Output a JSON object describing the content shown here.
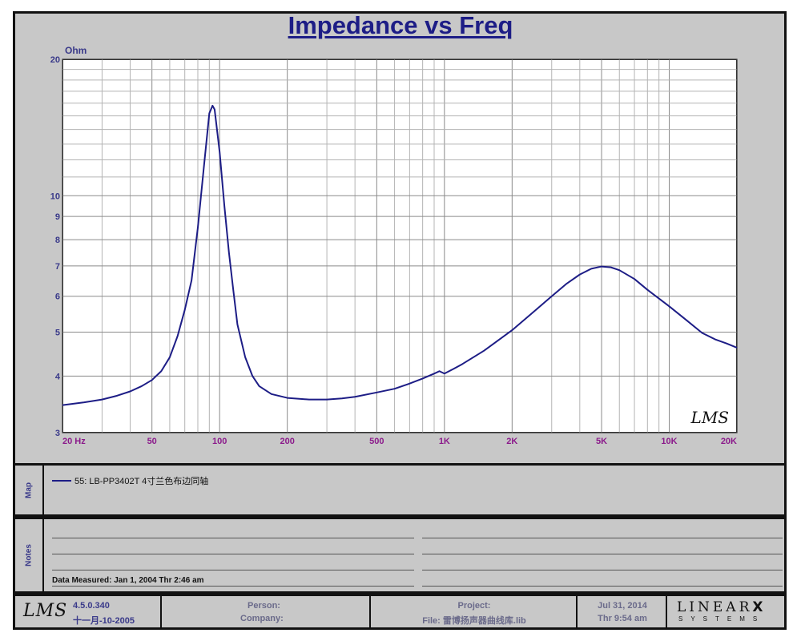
{
  "chart_data": {
    "type": "line",
    "title": "Impedance vs Freq",
    "y_unit_label": "Ohm",
    "x_scale": "log",
    "y_scale": "log",
    "xlim": [
      20,
      20000
    ],
    "ylim": [
      3,
      20
    ],
    "x_tick_labels": [
      {
        "value": 20,
        "label": "20  Hz"
      },
      {
        "value": 50,
        "label": "50"
      },
      {
        "value": 100,
        "label": "100"
      },
      {
        "value": 200,
        "label": "200"
      },
      {
        "value": 500,
        "label": "500"
      },
      {
        "value": 1000,
        "label": "1K"
      },
      {
        "value": 2000,
        "label": "2K"
      },
      {
        "value": 5000,
        "label": "5K"
      },
      {
        "value": 10000,
        "label": "10K"
      },
      {
        "value": 20000,
        "label": "20K"
      }
    ],
    "y_tick_labels": [
      {
        "value": 3,
        "label": "3"
      },
      {
        "value": 4,
        "label": "4"
      },
      {
        "value": 5,
        "label": "5"
      },
      {
        "value": 6,
        "label": "6"
      },
      {
        "value": 7,
        "label": "7"
      },
      {
        "value": 8,
        "label": "8"
      },
      {
        "value": 9,
        "label": "9"
      },
      {
        "value": 10,
        "label": "10"
      },
      {
        "value": 20,
        "label": "20"
      }
    ],
    "grid": true,
    "series": [
      {
        "name": "55: LB-PP3402T 4寸兰色布边同轴",
        "color": "#1d1d86",
        "x": [
          20,
          25,
          30,
          35,
          40,
          45,
          50,
          55,
          60,
          65,
          70,
          75,
          80,
          85,
          90,
          93,
          95,
          100,
          105,
          110,
          115,
          120,
          130,
          140,
          150,
          170,
          200,
          250,
          300,
          350,
          400,
          500,
          600,
          700,
          800,
          900,
          950,
          1000,
          1100,
          1200,
          1500,
          2000,
          2500,
          3000,
          3500,
          4000,
          4500,
          5000,
          5500,
          6000,
          7000,
          8000,
          10000,
          12000,
          14000,
          16000,
          18000,
          20000
        ],
        "y": [
          3.45,
          3.5,
          3.55,
          3.62,
          3.7,
          3.8,
          3.92,
          4.1,
          4.4,
          4.9,
          5.6,
          6.5,
          8.5,
          11.5,
          15.2,
          15.8,
          15.5,
          12.5,
          9.5,
          7.5,
          6.2,
          5.2,
          4.4,
          4.0,
          3.8,
          3.65,
          3.58,
          3.55,
          3.55,
          3.57,
          3.6,
          3.68,
          3.75,
          3.85,
          3.95,
          4.05,
          4.1,
          4.05,
          4.15,
          4.25,
          4.55,
          5.05,
          5.55,
          6.0,
          6.4,
          6.7,
          6.9,
          6.98,
          6.95,
          6.85,
          6.55,
          6.2,
          5.7,
          5.3,
          4.98,
          4.82,
          4.72,
          4.62
        ]
      }
    ],
    "watermark_logo_text": "LMS"
  },
  "map_section": {
    "label": "Map",
    "legend_entry": "55: LB-PP3402T 4寸兰色布边同轴"
  },
  "notes_section": {
    "label": "Notes",
    "data_measured": "Data Measured: Jan  1, 2004  Thr  2:46 am"
  },
  "footer": {
    "logo_text": "LMS",
    "version": "4.5.0.340",
    "version_date": "十一月-10-2005",
    "person_label": "Person:",
    "company_label": "Company:",
    "project_label": "Project:",
    "file_label": "File: 雷博扬声器曲线库.lib",
    "date": "Jul 31, 2014",
    "time": "Thr  9:54 am",
    "brand_text": "LINEAR",
    "brand_x": "X",
    "brand_sub": "SYSTEMS"
  },
  "colors": {
    "curve": "#1d1d86",
    "tick_label": "#8b1a8b",
    "title": "#1d1d86",
    "panel_bg": "#c8c8c8"
  }
}
